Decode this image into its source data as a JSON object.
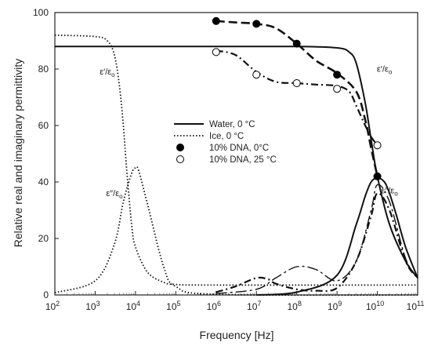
{
  "chart_data": {
    "type": "line",
    "title": "",
    "xlabel": "Frequency [Hz]",
    "ylabel": "Relative real and imaginary permittivity",
    "x_scale": "log10",
    "xlim": [
      100,
      100000000000
    ],
    "ylim": [
      0,
      100
    ],
    "grid": false,
    "legend_position": "center",
    "x_ticks": [
      {
        "value": 100,
        "base": "10",
        "exp": "2"
      },
      {
        "value": 1000,
        "base": "10",
        "exp": "3"
      },
      {
        "value": 10000,
        "base": "10",
        "exp": "4"
      },
      {
        "value": 100000,
        "base": "10",
        "exp": "5"
      },
      {
        "value": 1000000,
        "base": "10",
        "exp": "6"
      },
      {
        "value": 10000000,
        "base": "10",
        "exp": "7"
      },
      {
        "value": 100000000,
        "base": "10",
        "exp": "8"
      },
      {
        "value": 1000000000,
        "base": "10",
        "exp": "9"
      },
      {
        "value": 10000000000,
        "base": "10",
        "exp": "10"
      },
      {
        "value": 100000000000,
        "base": "10",
        "exp": "11"
      }
    ],
    "y_ticks": [
      "0",
      "20",
      "40",
      "60",
      "80",
      "100"
    ],
    "legend": [
      {
        "text": "Water, 0 °C",
        "symbol": "solid-line"
      },
      {
        "text": "Ice, 0 °C",
        "symbol": "dotted-line"
      },
      {
        "text": "10% DNA, 0°C",
        "symbol": "filled-circle"
      },
      {
        "text": "10% DNA,  25 °C",
        "symbol": "open-circle"
      }
    ],
    "annotations": [
      {
        "text": "ε′/εo",
        "x": 2000,
        "y": 78
      },
      {
        "text": "ε″/εo",
        "x": 3000,
        "y": 35
      },
      {
        "text": "ε′/εo",
        "x": 15000000000,
        "y": 79
      },
      {
        "text": "ε″/εo",
        "x": 20000000000,
        "y": 36
      }
    ],
    "series": [
      {
        "style": "solid",
        "x": [
          100,
          1000000,
          100000000,
          1000000000,
          2000000000,
          3000000000,
          5000000000,
          7000000000,
          10000000000,
          20000000000,
          50000000000,
          100000000000
        ],
        "y": [
          88,
          88,
          88,
          87.5,
          86,
          82,
          68,
          55,
          42,
          25,
          12,
          6
        ]
      },
      {
        "style": "solid",
        "x": [
          10000000,
          100000000,
          1000000000,
          3000000000,
          5000000000,
          7000000000,
          10000000000,
          15000000000,
          20000000000,
          30000000000,
          50000000000,
          100000000000
        ],
        "y": [
          0,
          1,
          7,
          25,
          35,
          40,
          41.5,
          40,
          36,
          28,
          17,
          6
        ]
      },
      {
        "style": "dotted",
        "x": [
          100,
          1000,
          2000,
          3000,
          4000,
          5000,
          6000,
          8000,
          10000,
          20000,
          50000,
          100000,
          1000000,
          100000000000
        ],
        "y": [
          92,
          91.5,
          90,
          85,
          74,
          60,
          45,
          25,
          17,
          8,
          4.5,
          3.7,
          3.5,
          3.5
        ]
      },
      {
        "style": "dotted",
        "x": [
          100,
          1000,
          3000,
          5000,
          8000,
          10000,
          12000,
          20000,
          50000,
          100000,
          1000000,
          100000000000
        ],
        "y": [
          0.8,
          5,
          18,
          33,
          43,
          45,
          44,
          32,
          10,
          3,
          0.2,
          0
        ]
      },
      {
        "style": "dashed",
        "x": [
          1000000,
          3000000,
          10000000,
          30000000,
          100000000,
          300000000,
          1000000000,
          3000000000,
          5000000000,
          7000000000,
          10000000000
        ],
        "y": [
          97,
          96.5,
          96,
          94.5,
          89,
          83,
          78.5,
          72,
          62,
          52,
          42
        ]
      },
      {
        "style": "dash-dot",
        "x": [
          1000000,
          3000000,
          10000000,
          30000000,
          100000000,
          300000000,
          1000000000,
          2000000000,
          3000000000,
          5000000000,
          7000000000,
          10000000000
        ],
        "y": [
          86.5,
          85,
          79,
          75.5,
          75,
          74.5,
          74,
          72,
          67,
          60,
          56,
          53
        ]
      },
      {
        "style": "dash-dot",
        "x": [
          1000000,
          3000000,
          10000000,
          20000000,
          30000000,
          100000000,
          300000000,
          1000000000,
          3000000000,
          7000000000,
          10000000000,
          20000000000,
          50000000000,
          100000000000
        ],
        "y": [
          1,
          3,
          6,
          5.5,
          4,
          2,
          1.5,
          2.5,
          12,
          28,
          36,
          30,
          12,
          6
        ]
      },
      {
        "style": "long-dash-dot",
        "x": [
          1000000,
          10000000,
          30000000,
          100000000,
          300000000,
          1000000000,
          3000000000,
          7000000000,
          10000000000,
          20000000000,
          50000000000,
          100000000000
        ],
        "y": [
          0.5,
          2,
          6,
          10,
          9,
          5,
          12,
          30,
          39,
          33,
          13,
          6
        ]
      }
    ],
    "points": [
      {
        "x": 1000000,
        "y": 97,
        "fill": "filled"
      },
      {
        "x": 10000000,
        "y": 96,
        "fill": "filled"
      },
      {
        "x": 100000000,
        "y": 89,
        "fill": "filled"
      },
      {
        "x": 1000000000,
        "y": 78,
        "fill": "filled"
      },
      {
        "x": 10000000000,
        "y": 42,
        "fill": "filled"
      },
      {
        "x": 1000000,
        "y": 86,
        "fill": "open"
      },
      {
        "x": 10000000,
        "y": 78,
        "fill": "open"
      },
      {
        "x": 100000000,
        "y": 75,
        "fill": "open"
      },
      {
        "x": 1000000000,
        "y": 73,
        "fill": "open"
      },
      {
        "x": 10000000000,
        "y": 53,
        "fill": "open"
      }
    ]
  }
}
